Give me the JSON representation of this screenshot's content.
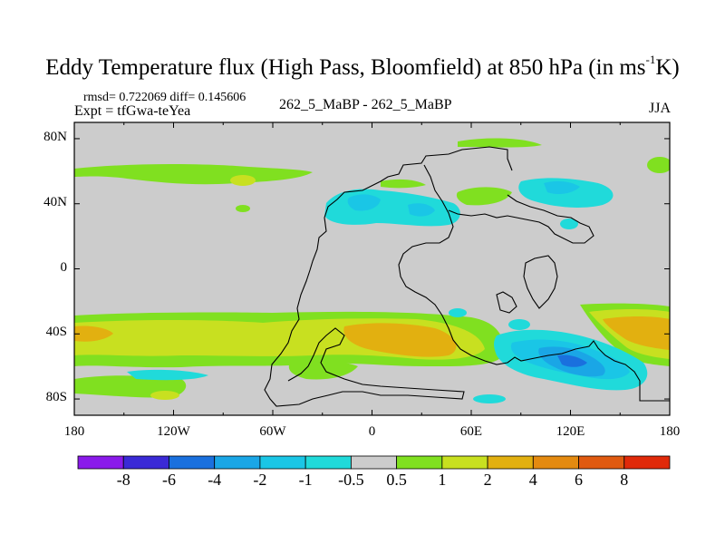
{
  "title": {
    "main": "Eddy Temperature flux (High Pass, Bloomfield) at 850 hPa (in ms",
    "sup": "-1",
    "end": "K)"
  },
  "stats": "rmsd= 0.722069 diff= 0.145606",
  "experiment": "Expt = tfGwa-teYea",
  "case_label": "262_5_MaBP - 262_5_MaBP",
  "season": "JJA",
  "axes": {
    "x_ticks": [
      "180",
      "120W",
      "60W",
      "0",
      "60E",
      "120E",
      "180"
    ],
    "y_ticks": [
      "80N",
      "40N",
      "0",
      "40S",
      "80S"
    ]
  },
  "colorbar": {
    "labels": [
      "-8",
      "-6",
      "-4",
      "-2",
      "-1",
      "-0.5",
      "0.5",
      "1",
      "2",
      "4",
      "6",
      "8"
    ],
    "colors": [
      "#8a1aea",
      "#3a2ad6",
      "#1a70de",
      "#1aa6e6",
      "#1ac6e6",
      "#20dada",
      "#cccccc",
      "#80e020",
      "#c8e020",
      "#e2b010",
      "#e48a10",
      "#e05a10",
      "#e02a0a"
    ]
  },
  "chart_data": {
    "type": "map",
    "variable": "Eddy Temperature flux (High Pass, Bloomfield) at 850 hPa",
    "units": "ms-1K",
    "lon_range": [
      -180,
      180
    ],
    "lat_range": [
      -90,
      90
    ],
    "levels": [
      -8,
      -6,
      -4,
      -2,
      -1,
      -0.5,
      0.5,
      1,
      2,
      4,
      6,
      8
    ],
    "features": [
      {
        "name": "nh-mid-lat-band",
        "lon": [
          -180,
          -60
        ],
        "lat": [
          50,
          60
        ],
        "sign": "positive",
        "range": "0.5 to 1"
      },
      {
        "name": "nh-negative-atlantic",
        "lon": [
          -30,
          60
        ],
        "lat": [
          28,
          45
        ],
        "sign": "negative",
        "range": "-1 to -2"
      },
      {
        "name": "nh-negative-pacific",
        "lon": [
          100,
          160
        ],
        "lat": [
          40,
          55
        ],
        "sign": "negative",
        "range": "-0.5 to -2"
      },
      {
        "name": "sh-storm-track",
        "lon": [
          -180,
          180
        ],
        "lat": [
          -65,
          -30
        ],
        "sign": "positive",
        "range": "1 to 4"
      },
      {
        "name": "sh-negative-indian",
        "lon": [
          70,
          160
        ],
        "lat": [
          -70,
          -30
        ],
        "sign": "negative",
        "range": "-1 to -4"
      }
    ]
  }
}
